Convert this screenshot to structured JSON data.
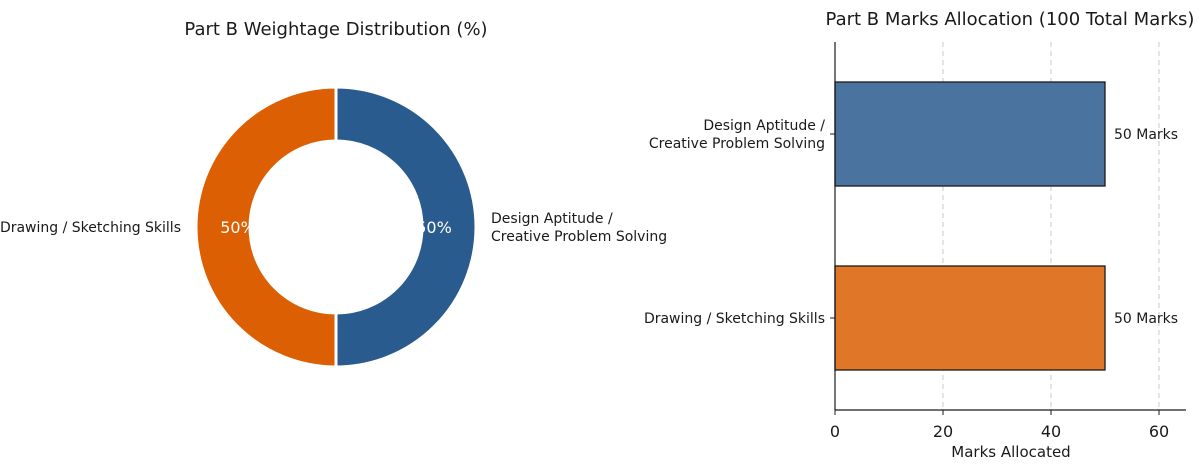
{
  "chart_data": [
    {
      "type": "pie",
      "style": "donut",
      "title": "Part B Weightage Distribution (%)",
      "slices": [
        {
          "label": [
            "Design Aptitude /",
            "Creative Problem Solving"
          ],
          "value": 50,
          "value_label": "50%",
          "color": "#2a5b8e"
        },
        {
          "label": [
            "Drawing / Sketching Skills"
          ],
          "value": 50,
          "value_label": "50%",
          "color": "#dc6003"
        }
      ]
    },
    {
      "type": "bar",
      "orientation": "horizontal",
      "title": "Part B Marks Allocation (100 Total Marks)",
      "categories": [
        [
          "Design Aptitude /",
          "Creative Problem Solving"
        ],
        [
          "Drawing / Sketching Skills"
        ]
      ],
      "values": [
        50,
        50
      ],
      "value_labels": [
        "50 Marks",
        "50 Marks"
      ],
      "colors": [
        "#4a739f",
        "#e07628"
      ],
      "xlabel": "Marks Allocated",
      "xlim": [
        0,
        65
      ],
      "xticks": [
        0,
        20,
        40,
        60
      ],
      "grid": "x-dashed"
    }
  ]
}
